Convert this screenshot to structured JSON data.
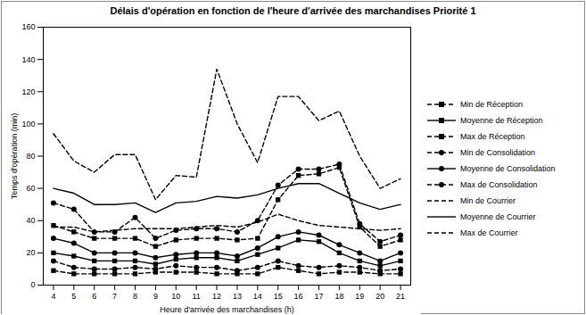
{
  "chart_data": {
    "type": "line",
    "title": "Délais d'opération en fonction de l'heure d'arrivée des marchandises Priorité 1",
    "x_label": "Heure d'arrivée des marchandises (h)",
    "y_label": "Temps d'opération (min)",
    "x": [
      4,
      5,
      6,
      7,
      8,
      9,
      10,
      11,
      12,
      13,
      14,
      15,
      16,
      17,
      18,
      19,
      20,
      21
    ],
    "xlim": [
      3.5,
      21.5
    ],
    "xticks": [
      4,
      5,
      6,
      7,
      8,
      9,
      10,
      11,
      12,
      13,
      14,
      15,
      16,
      17,
      18,
      19,
      20,
      21
    ],
    "ylim": [
      0,
      160
    ],
    "yticks": [
      0,
      20,
      40,
      60,
      80,
      100,
      120,
      140,
      160
    ],
    "grid": false,
    "legend": "right",
    "series": [
      {
        "name": "Min de Réception",
        "color": "#000000",
        "marker": "square",
        "line_style": "dashed",
        "values": [
          9,
          7,
          7,
          7,
          7,
          8,
          8,
          8,
          7,
          7,
          7,
          11,
          9,
          7,
          8,
          8,
          7,
          7
        ]
      },
      {
        "name": "Moyenne de Réception",
        "color": "#000000",
        "marker": "square",
        "line_style": "solid",
        "values": [
          20,
          18,
          15,
          15,
          15,
          13,
          16,
          17,
          17,
          15,
          19,
          23,
          28,
          27,
          20,
          15,
          12,
          15
        ]
      },
      {
        "name": "Max de Réception",
        "color": "#000000",
        "marker": "square",
        "line_style": "dashed",
        "values": [
          37,
          33,
          29,
          29,
          29,
          24,
          28,
          29,
          29,
          28,
          29,
          53,
          68,
          69,
          73,
          36,
          24,
          28
        ]
      },
      {
        "name": "Min de Consolidation",
        "color": "#000000",
        "marker": "circle",
        "line_style": "dashed",
        "values": [
          15,
          11,
          10,
          10,
          11,
          10,
          12,
          11,
          11,
          9,
          11,
          15,
          12,
          11,
          12,
          11,
          9,
          10
        ]
      },
      {
        "name": "Moyenne de Consolidation",
        "color": "#000000",
        "marker": "circle",
        "line_style": "solid",
        "values": [
          29,
          26,
          20,
          20,
          20,
          17,
          19,
          20,
          20,
          18,
          23,
          30,
          33,
          31,
          25,
          20,
          15,
          20
        ]
      },
      {
        "name": "Max de Consolidation",
        "color": "#000000",
        "marker": "circle",
        "line_style": "dashed",
        "values": [
          51,
          47,
          33,
          33,
          42,
          29,
          34,
          35,
          35,
          33,
          40,
          62,
          72,
          72,
          75,
          38,
          27,
          31
        ]
      },
      {
        "name": "Min de Courrier",
        "color": "#000000",
        "marker": "none",
        "line_style": "dashed",
        "values": [
          36,
          36,
          33,
          34,
          35,
          35,
          35,
          36,
          37,
          36,
          39,
          44,
          40,
          37,
          36,
          35,
          34,
          35
        ]
      },
      {
        "name": "Moyenne de Courrier",
        "color": "#000000",
        "marker": "none",
        "line_style": "solid",
        "values": [
          60,
          57,
          50,
          50,
          51,
          45,
          51,
          52,
          55,
          54,
          56,
          60,
          63,
          63,
          57,
          51,
          47,
          50
        ]
      },
      {
        "name": "Max de Courrier",
        "color": "#000000",
        "marker": "none",
        "line_style": "dashed",
        "values": [
          94,
          77,
          70,
          81,
          81,
          53,
          68,
          67,
          134,
          100,
          76,
          117,
          117,
          102,
          108,
          80,
          60,
          66
        ]
      }
    ]
  }
}
